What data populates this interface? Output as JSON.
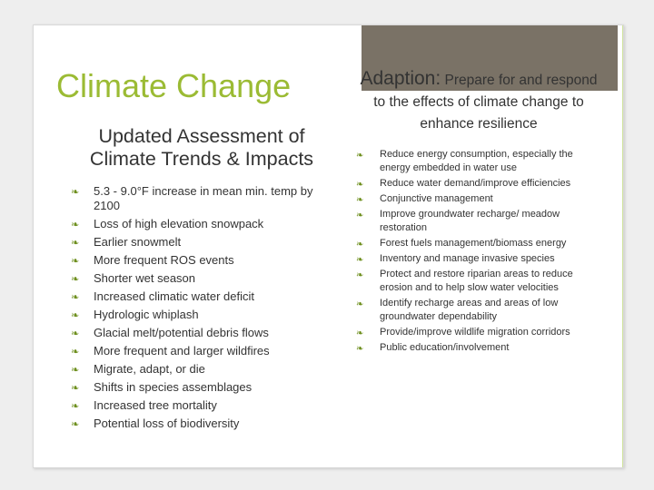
{
  "slide": {
    "title": "Climate Change",
    "left": {
      "heading": "Updated Assessment of Climate Trends & Impacts",
      "bullet_icon": "arrow-ornament-icon",
      "items": [
        "5.3 - 9.0°F increase in mean min. temp by 2100",
        "Loss of high elevation snowpack",
        "Earlier snowmelt",
        "More frequent ROS events",
        "Shorter wet season",
        "Increased climatic water deficit",
        "Hydrologic whiplash",
        "Glacial melt/potential debris flows",
        "More frequent and larger wildfires",
        "Migrate, adapt, or die",
        "Shifts in species assemblages",
        "Increased tree mortality",
        "Potential loss of biodiversity"
      ]
    },
    "right": {
      "heading_big": "Adaption:",
      "heading_rest": " Prepare for and respond to the effects of climate change to enhance resilience",
      "items": [
        "Reduce energy consumption, especially the energy embedded in water use",
        "Reduce water demand/improve efficiencies",
        "Conjunctive management",
        "Improve groundwater recharge/ meadow restoration",
        "Forest fuels management/biomass energy",
        "Inventory and manage invasive species",
        "Protect and restore riparian areas to reduce erosion and to help slow water velocities",
        "Identify recharge areas and areas of low groundwater dependability",
        "Provide/improve wildlife migration corridors",
        "Public education/involvement"
      ]
    }
  },
  "colors": {
    "title": "#9bbb34",
    "bullet": "#6e8f1e",
    "header_block": "#7a7266",
    "text": "#333333"
  }
}
